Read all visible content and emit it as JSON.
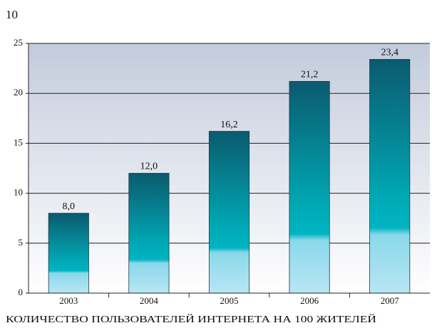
{
  "chart_data": {
    "type": "bar",
    "note": "10",
    "title": "КОЛИЧЕСТВО ПОЛЬЗОВАТЕЛЕЙ ИНТЕРНЕТА НА 100 ЖИТЕЛЕЙ",
    "categories": [
      "2003",
      "2004",
      "2005",
      "2006",
      "2007"
    ],
    "values": [
      8.0,
      12.0,
      16.2,
      21.2,
      23.4
    ],
    "value_labels": [
      "8,0",
      "12,0",
      "16,2",
      "21,2",
      "23,4"
    ],
    "ylim": [
      0,
      25
    ],
    "yticks": [
      0,
      5,
      10,
      15,
      20,
      25
    ],
    "grid": true
  }
}
